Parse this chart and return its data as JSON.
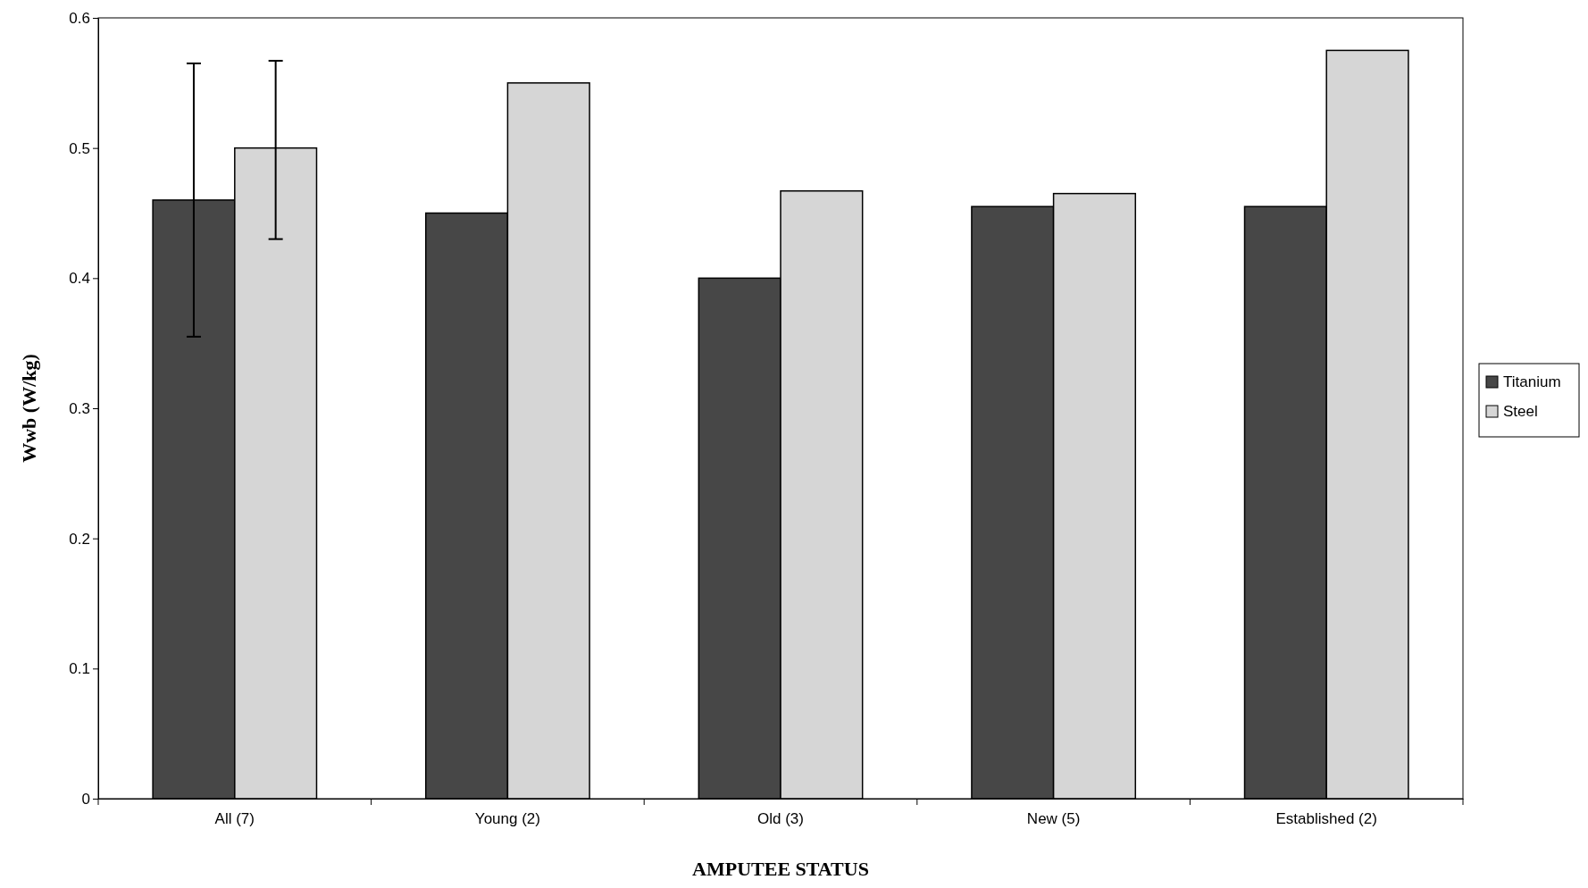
{
  "chart_data": {
    "type": "bar",
    "xlabel": "AMPUTEE STATUS",
    "ylabel": "Wwb (W/kg)",
    "categories": [
      "All (7)",
      "Young (2)",
      "Old (3)",
      "New (5)",
      "Established (2)"
    ],
    "series": [
      {
        "name": "Titanium",
        "color": "#474747",
        "values": [
          0.46,
          0.45,
          0.4,
          0.455,
          0.455
        ],
        "errors": [
          [
            0.355,
            0.565
          ],
          null,
          null,
          null,
          null
        ]
      },
      {
        "name": "Steel",
        "color": "#d6d6d6",
        "values": [
          0.5,
          0.55,
          0.467,
          0.465,
          0.575
        ],
        "errors": [
          [
            0.43,
            0.567
          ],
          null,
          null,
          null,
          null
        ]
      }
    ],
    "ylim": [
      0,
      0.6
    ],
    "yticks": [
      0,
      {
        "value": 0.1,
        "label": "0.1"
      },
      {
        "value": 0.2,
        "label": "0.2"
      },
      {
        "value": 0.3,
        "label": "0.3"
      },
      {
        "value": 0.4,
        "label": "0.4"
      },
      {
        "value": 0.5,
        "label": "0.5"
      },
      {
        "value": 0.6,
        "label": "0.6"
      }
    ],
    "legend": "right",
    "grid": false
  }
}
